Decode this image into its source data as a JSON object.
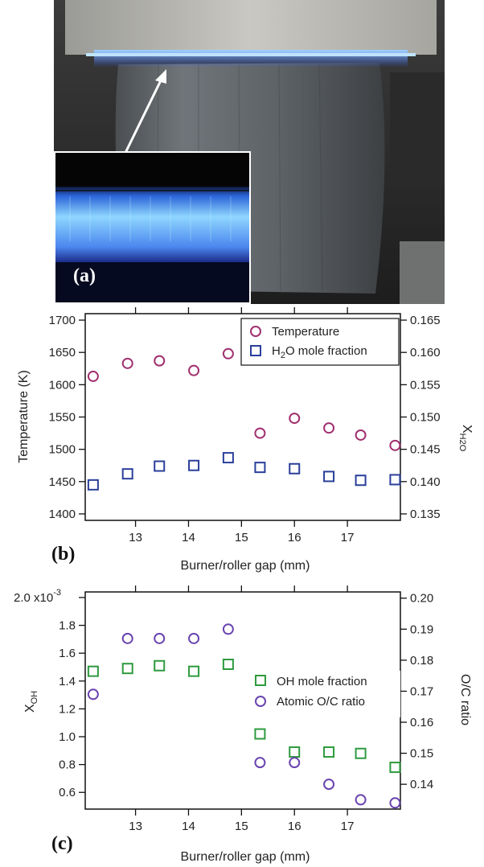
{
  "figure": {
    "panel_a_label": "(a)",
    "panel_b_label": "(b)",
    "panel_c_label": "(c)"
  },
  "colors": {
    "temperature": "#a0306e",
    "h2o": "#2a3f9a",
    "oh": "#2e9a3e",
    "oc": "#6a44b0",
    "flame_blue": "#3a6cff"
  },
  "chart_data": [
    {
      "type": "scatter",
      "panel": "(b)",
      "xlabel": "Burner/roller gap (mm)",
      "x_ticks": [
        13,
        14,
        15,
        16,
        17
      ],
      "xlim": [
        12.05,
        18.0
      ],
      "y_left": {
        "label": "Temperature (K)",
        "lim": [
          1390,
          1710
        ],
        "ticks": [
          1400,
          1450,
          1500,
          1550,
          1600,
          1650,
          1700
        ]
      },
      "y_right": {
        "label_main": "X",
        "label_sub": "H2O",
        "lim": [
          0.134,
          0.166
        ],
        "ticks": [
          "0.135",
          "0.140",
          "0.145",
          "0.150",
          "0.155",
          "0.160",
          "0.165"
        ]
      },
      "legend": {
        "position": "top-right",
        "entries": [
          {
            "name": "Temperature",
            "marker": "circle"
          },
          {
            "name_main": "H",
            "name_sub": "2",
            "name_rest": "O mole fraction",
            "marker": "square"
          }
        ]
      },
      "series": [
        {
          "name": "Temperature",
          "axis": "left",
          "marker": "circle",
          "color": "#a0306e",
          "x": [
            12.2,
            12.85,
            13.45,
            14.1,
            14.75,
            15.35,
            16.0,
            16.65,
            17.25,
            17.9
          ],
          "y": [
            1613,
            1633,
            1637,
            1622,
            1648,
            1525,
            1548,
            1533,
            1522,
            1506
          ]
        },
        {
          "name": "H2O mole fraction",
          "axis": "right",
          "marker": "square",
          "color": "#2a3f9a",
          "x": [
            12.2,
            12.85,
            13.45,
            14.1,
            14.75,
            15.35,
            16.0,
            16.65,
            17.25,
            17.9
          ],
          "y": [
            0.1395,
            0.1412,
            0.1424,
            0.1425,
            0.1437,
            0.1422,
            0.142,
            0.1408,
            0.1402,
            0.1403
          ]
        }
      ]
    },
    {
      "type": "scatter",
      "panel": "(c)",
      "xlabel": "Burner/roller gap (mm)",
      "x_ticks": [
        13,
        14,
        15,
        16,
        17
      ],
      "xlim": [
        12.05,
        18.0
      ],
      "y_left": {
        "label_main": "X",
        "label_sub": "OH",
        "lim": [
          0.00048,
          0.00204
        ],
        "ticks": [
          "0.6",
          "0.8",
          "1.0",
          "1.2",
          "1.4",
          "1.6",
          "1.8",
          "2.0 x10"
        ],
        "tick_values": [
          0.0006,
          0.0008,
          0.001,
          0.0012,
          0.0014,
          0.0016,
          0.0018,
          0.002
        ],
        "exponent": "-3"
      },
      "y_right": {
        "label": "O/C ratio",
        "lim": [
          0.132,
          0.202
        ],
        "ticks": [
          "0.14",
          "0.15",
          "0.16",
          "0.17",
          "0.18",
          "0.19",
          "0.20"
        ]
      },
      "legend": {
        "position": "right",
        "entries": [
          {
            "name": "OH mole fraction",
            "marker": "square"
          },
          {
            "name": "Atomic O/C ratio",
            "marker": "circle"
          }
        ]
      },
      "series": [
        {
          "name": "OH mole fraction",
          "axis": "left",
          "marker": "square",
          "color": "#2e9a3e",
          "x": [
            12.2,
            12.85,
            13.45,
            14.1,
            14.75,
            15.35,
            16.0,
            16.65,
            17.25,
            17.9
          ],
          "y": [
            0.00147,
            0.00149,
            0.00151,
            0.00147,
            0.00152,
            0.00102,
            0.00089,
            0.00089,
            0.00088,
            0.00078
          ]
        },
        {
          "name": "Atomic O/C ratio",
          "axis": "right",
          "marker": "circle",
          "color": "#6a44b0",
          "x": [
            12.2,
            12.85,
            13.45,
            14.1,
            14.75,
            15.35,
            16.0,
            16.65,
            17.25,
            17.9
          ],
          "y": [
            0.169,
            0.187,
            0.187,
            0.187,
            0.19,
            0.147,
            0.147,
            0.14,
            0.135,
            0.134
          ]
        }
      ]
    }
  ]
}
